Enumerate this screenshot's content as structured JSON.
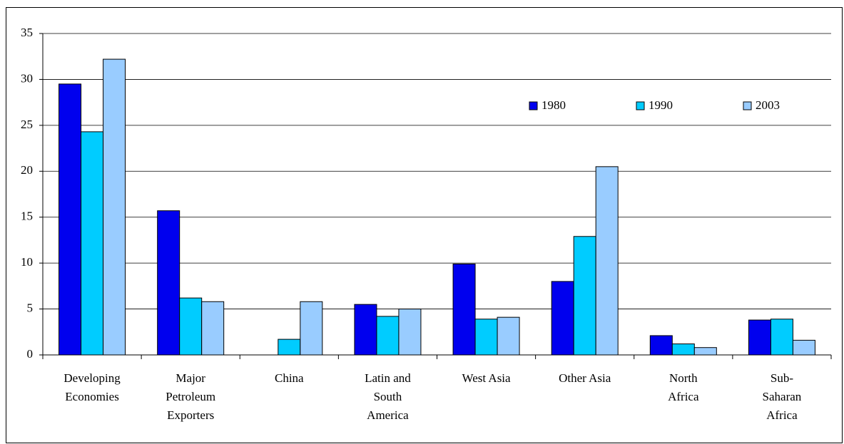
{
  "chart_data": {
    "type": "bar",
    "categories": [
      [
        "Developing",
        "Economies"
      ],
      [
        "Major",
        "Petroleum",
        "Exporters"
      ],
      [
        "China"
      ],
      [
        "Latin and",
        "South",
        "America"
      ],
      [
        "West Asia"
      ],
      [
        "Other Asia"
      ],
      [
        "North",
        "Africa"
      ],
      [
        "Sub-",
        "Saharan",
        "Africa"
      ]
    ],
    "series": [
      {
        "name": "1980",
        "color": "#0000ee",
        "values": [
          29.5,
          15.7,
          null,
          5.5,
          9.9,
          8.0,
          2.1,
          3.8
        ]
      },
      {
        "name": "1990",
        "color": "#00ccff",
        "values": [
          24.3,
          6.2,
          1.7,
          4.2,
          3.9,
          12.9,
          1.2,
          3.9
        ]
      },
      {
        "name": "2003",
        "color": "#99ccff",
        "values": [
          32.2,
          5.8,
          5.8,
          5.0,
          4.1,
          20.5,
          0.8,
          1.6
        ]
      }
    ],
    "ylim": [
      0,
      35
    ],
    "yticks": [
      0,
      5,
      10,
      15,
      20,
      25,
      30,
      35
    ],
    "grid": true
  }
}
